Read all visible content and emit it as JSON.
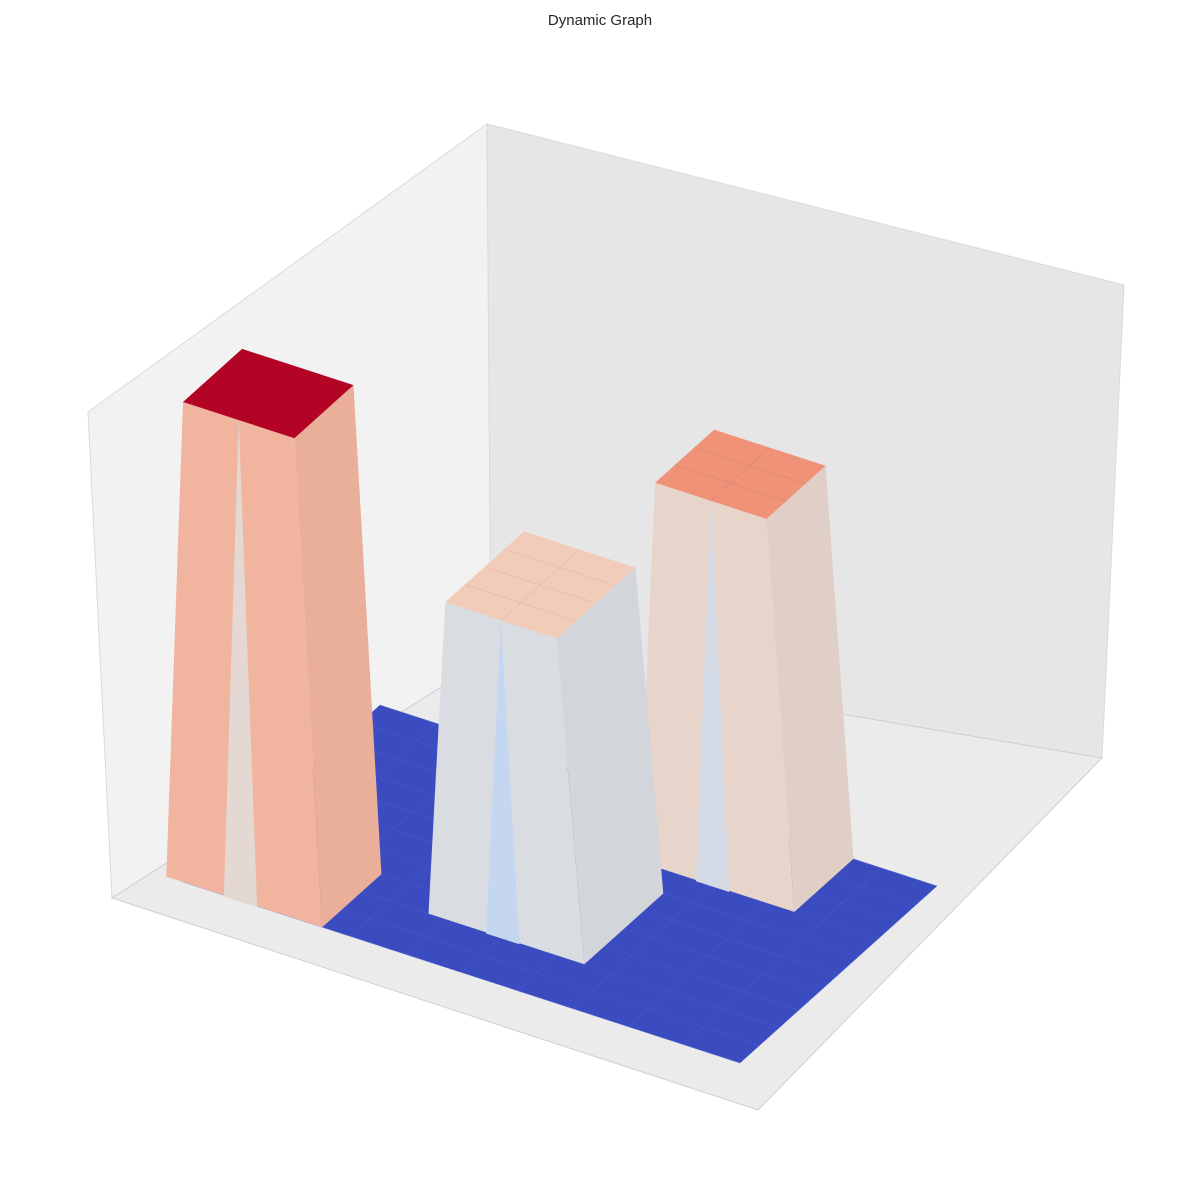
{
  "chart_data": {
    "type": "surface3d",
    "title": "Dynamic Graph",
    "xlabel": "",
    "ylabel": "",
    "zlabel": "",
    "grid": false,
    "colormap": "coolwarm",
    "colormap_colors": [
      "#3b4cc0",
      "#7b9ff9",
      "#c0d4f5",
      "#dddddd",
      "#f2cbb7",
      "#ee8468",
      "#b40426"
    ],
    "pane_colors": {
      "left": "#f2f2f2",
      "back": "#e6e6e6",
      "floor": "#ebebeb"
    },
    "base_value": 0,
    "z_range": [
      0,
      1
    ],
    "grid_size": [
      10,
      10
    ],
    "blocks": [
      {
        "x_range": [
          0,
          2
        ],
        "y_range": [
          0,
          3
        ],
        "value": 1.0
      },
      {
        "x_range": [
          4,
          6
        ],
        "y_range": [
          2,
          6
        ],
        "value": 0.66
      },
      {
        "x_range": [
          6,
          8
        ],
        "y_range": [
          7,
          10
        ],
        "value": 0.8
      }
    ]
  }
}
